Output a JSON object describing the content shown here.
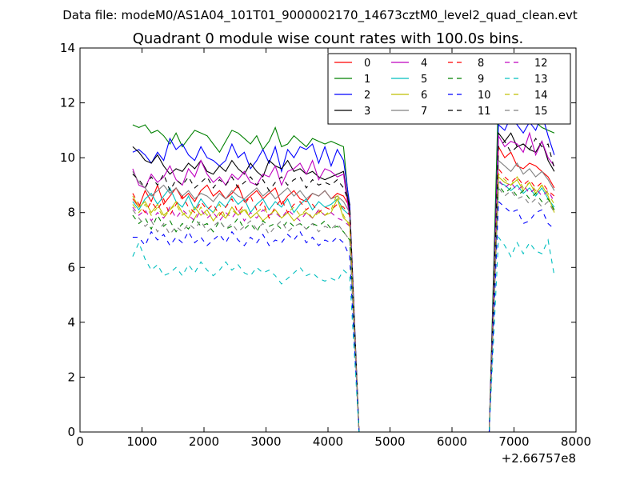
{
  "chart_data": {
    "type": "line",
    "suptitle": "Data file: modeM0/AS1A04_101T01_9000002170_14673cztM0_level2_quad_clean.evt",
    "title": "Quadrant 0 module wise count rates with 100.0s bins.",
    "xlabel": "",
    "ylabel": "",
    "x_offset_label": "+2.66757e8",
    "xlim": [
      0,
      8000
    ],
    "ylim": [
      0,
      14
    ],
    "xticks": [
      0,
      1000,
      2000,
      3000,
      4000,
      5000,
      6000,
      7000,
      8000
    ],
    "yticks": [
      0,
      2,
      4,
      6,
      8,
      10,
      12,
      14
    ],
    "legend_position": "upper-right",
    "gap": {
      "drop_start": 4400,
      "zero_from": 4500,
      "zero_to": 6600,
      "rise_end": 6700
    },
    "x_segment1": [
      850,
      950,
      1050,
      1150,
      1250,
      1350,
      1450,
      1550,
      1650,
      1750,
      1850,
      1950,
      2050,
      2150,
      2250,
      2350,
      2450,
      2550,
      2650,
      2750,
      2850,
      2950,
      3050,
      3150,
      3250,
      3350,
      3450,
      3550,
      3650,
      3750,
      3850,
      3950,
      4050,
      4150,
      4250,
      4350
    ],
    "x_segment2": [
      6750,
      6850,
      6950,
      7050,
      7150,
      7250,
      7350,
      7450,
      7550,
      7650
    ],
    "series": [
      {
        "name": "0",
        "color": "#ff0000",
        "dash": "solid",
        "seg1": [
          8.5,
          8.2,
          8.8,
          8.4,
          9.0,
          8.3,
          8.6,
          8.9,
          8.5,
          8.7,
          8.4,
          8.8,
          9.0,
          8.6,
          8.8,
          8.5,
          8.7,
          9.0,
          8.4,
          8.6,
          8.8,
          8.5,
          8.7,
          8.9,
          8.3,
          8.6,
          8.8,
          8.5,
          8.4,
          8.7,
          8.6,
          8.8,
          8.5,
          8.7,
          8.6,
          8.2
        ],
        "seg2": [
          10.4,
          10.0,
          10.2,
          9.7,
          9.6,
          9.8,
          9.7,
          9.5,
          9.3,
          8.9
        ]
      },
      {
        "name": "1",
        "color": "#008000",
        "dash": "solid",
        "seg1": [
          11.2,
          11.1,
          11.2,
          10.9,
          11.0,
          10.8,
          10.5,
          10.9,
          10.4,
          10.7,
          11.0,
          10.9,
          10.8,
          10.5,
          10.2,
          10.6,
          11.0,
          10.9,
          10.7,
          10.5,
          10.8,
          10.3,
          10.6,
          11.1,
          10.4,
          10.5,
          10.8,
          10.6,
          10.4,
          10.7,
          10.6,
          10.5,
          10.6,
          10.5,
          10.4,
          8.0
        ],
        "seg2": [
          12.4,
          12.1,
          12.2,
          11.8,
          11.4,
          11.5,
          11.3,
          11.1,
          11.0,
          10.9
        ]
      },
      {
        "name": "2",
        "color": "#0000ff",
        "dash": "solid",
        "seg1": [
          10.2,
          10.3,
          10.1,
          9.8,
          10.2,
          9.9,
          10.7,
          10.3,
          10.5,
          10.1,
          9.9,
          10.4,
          10.0,
          9.9,
          9.7,
          9.9,
          10.5,
          10.0,
          10.2,
          9.6,
          9.9,
          10.3,
          9.8,
          10.4,
          9.5,
          10.3,
          10.0,
          10.4,
          10.3,
          10.5,
          9.8,
          10.4,
          9.7,
          10.3,
          9.9,
          8.3
        ],
        "seg2": [
          11.2,
          11.0,
          11.5,
          11.2,
          10.9,
          11.3,
          11.0,
          11.6,
          10.8,
          10.1
        ]
      },
      {
        "name": "3",
        "color": "#000000",
        "dash": "solid",
        "seg1": [
          10.4,
          10.2,
          9.9,
          9.8,
          10.1,
          9.7,
          9.4,
          9.6,
          9.5,
          9.8,
          9.6,
          9.9,
          9.5,
          9.4,
          9.7,
          9.5,
          9.9,
          9.6,
          9.4,
          9.8,
          9.5,
          9.3,
          9.9,
          9.7,
          9.6,
          9.9,
          9.5,
          9.6,
          9.4,
          9.5,
          9.3,
          9.2,
          9.3,
          9.4,
          9.5,
          8.0
        ],
        "seg2": [
          10.9,
          10.6,
          10.9,
          10.4,
          10.5,
          10.3,
          10.2,
          10.6,
          9.9,
          9.5
        ]
      },
      {
        "name": "4",
        "color": "#bf00bf",
        "dash": "solid",
        "seg1": [
          9.6,
          9.0,
          8.9,
          9.4,
          9.1,
          9.3,
          9.7,
          9.2,
          9.0,
          9.6,
          9.3,
          9.9,
          9.4,
          9.1,
          9.3,
          9.0,
          9.4,
          9.2,
          9.5,
          9.1,
          9.0,
          9.4,
          9.3,
          9.7,
          9.0,
          9.5,
          9.6,
          9.8,
          9.4,
          9.9,
          9.2,
          9.6,
          9.5,
          9.3,
          9.4,
          7.8
        ],
        "seg2": [
          10.8,
          10.4,
          10.6,
          10.5,
          10.2,
          10.9,
          10.1,
          10.6,
          10.0,
          9.7
        ]
      },
      {
        "name": "5",
        "color": "#00bfbf",
        "dash": "solid",
        "seg1": [
          8.4,
          8.1,
          8.5,
          8.7,
          8.3,
          8.6,
          8.9,
          8.4,
          8.2,
          8.6,
          8.1,
          8.5,
          8.2,
          8.0,
          8.4,
          8.2,
          8.6,
          8.3,
          8.5,
          8.0,
          8.3,
          8.5,
          8.1,
          8.4,
          8.2,
          8.5,
          8.0,
          8.3,
          8.5,
          8.1,
          8.4,
          8.2,
          8.3,
          8.5,
          8.1,
          7.9
        ],
        "seg2": [
          9.1,
          9.0,
          8.8,
          9.0,
          8.7,
          8.9,
          8.6,
          8.9,
          8.5,
          8.2
        ]
      },
      {
        "name": "6",
        "color": "#bfbf00",
        "dash": "solid",
        "seg1": [
          8.6,
          8.2,
          8.4,
          8.0,
          8.3,
          7.9,
          8.1,
          8.4,
          8.0,
          7.8,
          8.2,
          7.9,
          8.1,
          7.7,
          8.0,
          7.8,
          8.2,
          7.9,
          8.1,
          7.8,
          8.0,
          7.7,
          7.9,
          8.1,
          7.8,
          8.0,
          7.7,
          7.9,
          8.0,
          7.8,
          8.1,
          7.9,
          8.0,
          8.5,
          7.8,
          7.6
        ],
        "seg2": [
          9.3,
          9.1,
          9.0,
          9.2,
          8.8,
          9.1,
          8.7,
          9.0,
          8.6,
          8.0
        ]
      },
      {
        "name": "7",
        "color": "#808080",
        "dash": "solid",
        "seg1": [
          9.5,
          9.1,
          8.9,
          8.6,
          8.8,
          9.0,
          8.7,
          8.9,
          8.6,
          8.8,
          8.5,
          8.7,
          8.6,
          8.4,
          8.7,
          8.5,
          8.8,
          8.6,
          8.5,
          8.7,
          8.9,
          8.6,
          8.8,
          8.5,
          8.7,
          8.9,
          8.6,
          8.8,
          8.5,
          8.7,
          8.6,
          8.8,
          8.5,
          8.6,
          8.4,
          8.0
        ],
        "seg2": [
          9.9,
          9.7,
          9.5,
          9.8,
          9.4,
          9.6,
          9.3,
          9.5,
          9.2,
          8.8
        ]
      },
      {
        "name": "8",
        "color": "#ff0000",
        "dash": "dashed",
        "seg1": [
          8.7,
          8.3,
          8.0,
          8.4,
          8.1,
          8.5,
          7.9,
          8.3,
          8.6,
          8.2,
          8.0,
          8.4,
          8.1,
          8.3,
          7.9,
          8.2,
          8.5,
          8.0,
          8.3,
          8.6,
          8.1,
          8.4,
          7.8,
          8.2,
          8.5,
          8.0,
          8.3,
          8.4,
          8.1,
          8.3,
          8.0,
          8.2,
          8.1,
          8.3,
          8.2,
          7.9
        ],
        "seg2": [
          9.6,
          9.3,
          9.1,
          9.3,
          9.0,
          9.2,
          8.9,
          9.1,
          8.8,
          8.6
        ]
      },
      {
        "name": "9",
        "color": "#008000",
        "dash": "dashed",
        "seg1": [
          7.9,
          7.6,
          7.8,
          7.4,
          7.9,
          7.5,
          7.7,
          7.3,
          7.6,
          7.4,
          7.8,
          7.5,
          7.6,
          7.3,
          7.7,
          7.4,
          7.5,
          7.8,
          7.4,
          7.6,
          7.3,
          7.7,
          7.5,
          7.6,
          7.4,
          7.7,
          7.5,
          7.6,
          7.4,
          7.6,
          7.5,
          7.7,
          7.4,
          7.5,
          7.3,
          7.0
        ],
        "seg2": [
          9.0,
          8.7,
          8.9,
          8.6,
          8.8,
          8.5,
          8.7,
          8.4,
          8.5,
          8.1
        ]
      },
      {
        "name": "10",
        "color": "#0000ff",
        "dash": "dashed",
        "seg1": [
          7.1,
          7.1,
          6.8,
          7.3,
          7.0,
          7.2,
          6.8,
          7.1,
          6.9,
          7.3,
          6.9,
          7.1,
          6.8,
          7.0,
          7.2,
          6.9,
          7.3,
          7.0,
          6.8,
          7.1,
          6.9,
          7.2,
          6.8,
          7.0,
          6.9,
          7.2,
          7.0,
          7.3,
          6.9,
          7.1,
          6.8,
          7.0,
          6.9,
          7.1,
          6.9,
          6.4
        ],
        "seg2": [
          8.4,
          8.2,
          8.0,
          8.1,
          7.6,
          7.7,
          8.0,
          8.1,
          7.6,
          7.4
        ]
      },
      {
        "name": "11",
        "color": "#000000",
        "dash": "dashed",
        "seg1": [
          9.4,
          9.2,
          8.9,
          9.3,
          9.0,
          9.4,
          8.8,
          9.2,
          9.0,
          9.3,
          8.9,
          9.1,
          9.3,
          8.9,
          9.2,
          9.0,
          9.3,
          8.9,
          9.1,
          9.3,
          9.0,
          9.2,
          8.8,
          9.1,
          9.3,
          9.0,
          9.2,
          9.3,
          8.9,
          9.2,
          9.0,
          9.1,
          9.0,
          9.2,
          8.9,
          8.3
        ],
        "seg2": [
          10.4,
          10.6,
          10.2,
          10.4,
          10.5,
          10.3,
          10.7,
          10.4,
          10.5,
          9.6
        ]
      },
      {
        "name": "12",
        "color": "#bf00bf",
        "dash": "dashed",
        "seg1": [
          8.2,
          7.9,
          8.1,
          7.7,
          8.0,
          7.8,
          8.2,
          7.8,
          8.1,
          7.9,
          7.7,
          8.1,
          7.8,
          8.0,
          7.7,
          8.0,
          7.8,
          8.1,
          7.7,
          8.0,
          7.8,
          8.1,
          7.9,
          8.0,
          7.8,
          8.1,
          7.9,
          7.7,
          8.0,
          7.8,
          8.1,
          7.9,
          8.0,
          7.8,
          7.7,
          7.5
        ],
        "seg2": [
          9.2,
          8.9,
          9.1,
          8.8,
          9.0,
          8.7,
          8.9,
          8.6,
          8.8,
          8.4
        ]
      },
      {
        "name": "13",
        "color": "#00bfbf",
        "dash": "dashed",
        "seg1": [
          6.4,
          6.9,
          6.3,
          5.9,
          6.1,
          5.7,
          5.8,
          6.0,
          5.7,
          6.1,
          5.8,
          6.2,
          5.9,
          5.7,
          5.9,
          6.2,
          5.9,
          6.1,
          5.8,
          5.7,
          6.0,
          5.8,
          5.9,
          5.7,
          5.4,
          5.6,
          5.8,
          6.0,
          5.7,
          5.8,
          5.6,
          5.5,
          5.6,
          5.5,
          5.9,
          5.7
        ],
        "seg2": [
          7.1,
          6.8,
          6.4,
          6.9,
          6.5,
          6.9,
          6.6,
          6.5,
          7.0,
          5.7
        ]
      },
      {
        "name": "14",
        "color": "#bfbf00",
        "dash": "dashed",
        "seg1": [
          8.3,
          8.0,
          8.3,
          7.9,
          8.2,
          7.8,
          8.1,
          8.3,
          7.9,
          8.1,
          7.8,
          8.2,
          7.9,
          8.0,
          8.3,
          7.8,
          8.1,
          7.9,
          8.2,
          7.8,
          8.0,
          8.2,
          7.9,
          8.1,
          7.8,
          8.0,
          8.2,
          7.9,
          8.1,
          7.8,
          8.0,
          7.9,
          8.1,
          8.7,
          7.9,
          7.5
        ],
        "seg2": [
          9.4,
          9.2,
          9.0,
          9.3,
          8.9,
          9.1,
          8.8,
          9.0,
          8.7,
          8.3
        ]
      },
      {
        "name": "15",
        "color": "#808080",
        "dash": "dashed",
        "seg1": [
          8.1,
          7.8,
          7.5,
          7.7,
          7.3,
          7.6,
          7.2,
          7.5,
          7.3,
          7.6,
          7.4,
          7.7,
          7.3,
          7.5,
          7.7,
          7.4,
          7.6,
          7.3,
          7.5,
          7.7,
          7.4,
          7.6,
          7.2,
          7.5,
          7.7,
          7.3,
          7.5,
          7.6,
          7.4,
          7.6,
          7.3,
          7.5,
          7.4,
          7.6,
          7.3,
          7.0
        ],
        "seg2": [
          8.9,
          8.6,
          8.8,
          8.5,
          8.6,
          8.3,
          8.5,
          8.2,
          8.4,
          8.0
        ]
      }
    ]
  }
}
